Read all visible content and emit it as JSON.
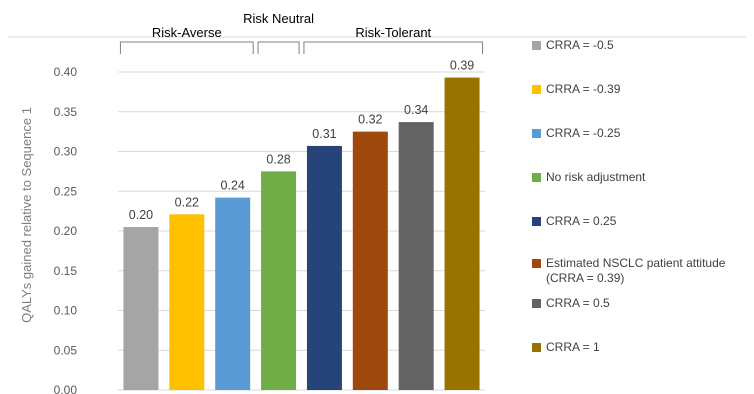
{
  "chart_data": {
    "type": "bar",
    "ylabel": "QALYs gained relative to Sequence 1",
    "ylim": [
      0,
      0.4
    ],
    "yticks": [
      "0.00",
      "0.05",
      "0.10",
      "0.15",
      "0.20",
      "0.25",
      "0.30",
      "0.35",
      "0.40"
    ],
    "grid": true,
    "legend_position": "right",
    "series": [
      {
        "name": "CRRA = -0.5",
        "value": 0.205,
        "label": "0.20",
        "color": "#a5a5a5"
      },
      {
        "name": "CRRA = -0.39",
        "value": 0.221,
        "label": "0.22",
        "color": "#ffc000"
      },
      {
        "name": "CRRA = -0.25",
        "value": 0.242,
        "label": "0.24",
        "color": "#5b9bd5"
      },
      {
        "name": "No risk adjustment",
        "value": 0.275,
        "label": "0.28",
        "color": "#70ad47"
      },
      {
        "name": "CRRA = 0.25",
        "value": 0.307,
        "label": "0.31",
        "color": "#264478"
      },
      {
        "name": "Estimated NSCLC patient attitude (CRRA = 0.39)",
        "value": 0.325,
        "label": "0.32",
        "color": "#9e480e"
      },
      {
        "name": "CRRA = 0.5",
        "value": 0.337,
        "label": "0.34",
        "color": "#636363"
      },
      {
        "name": "CRRA = 1",
        "value": 0.393,
        "label": "0.39",
        "color": "#997300"
      }
    ],
    "groups": [
      {
        "label": "Risk-Averse",
        "from": 0,
        "to": 2
      },
      {
        "label": "Risk Neutral",
        "from": 3,
        "to": 3
      },
      {
        "label": "Risk-Tolerant",
        "from": 4,
        "to": 7
      }
    ]
  }
}
